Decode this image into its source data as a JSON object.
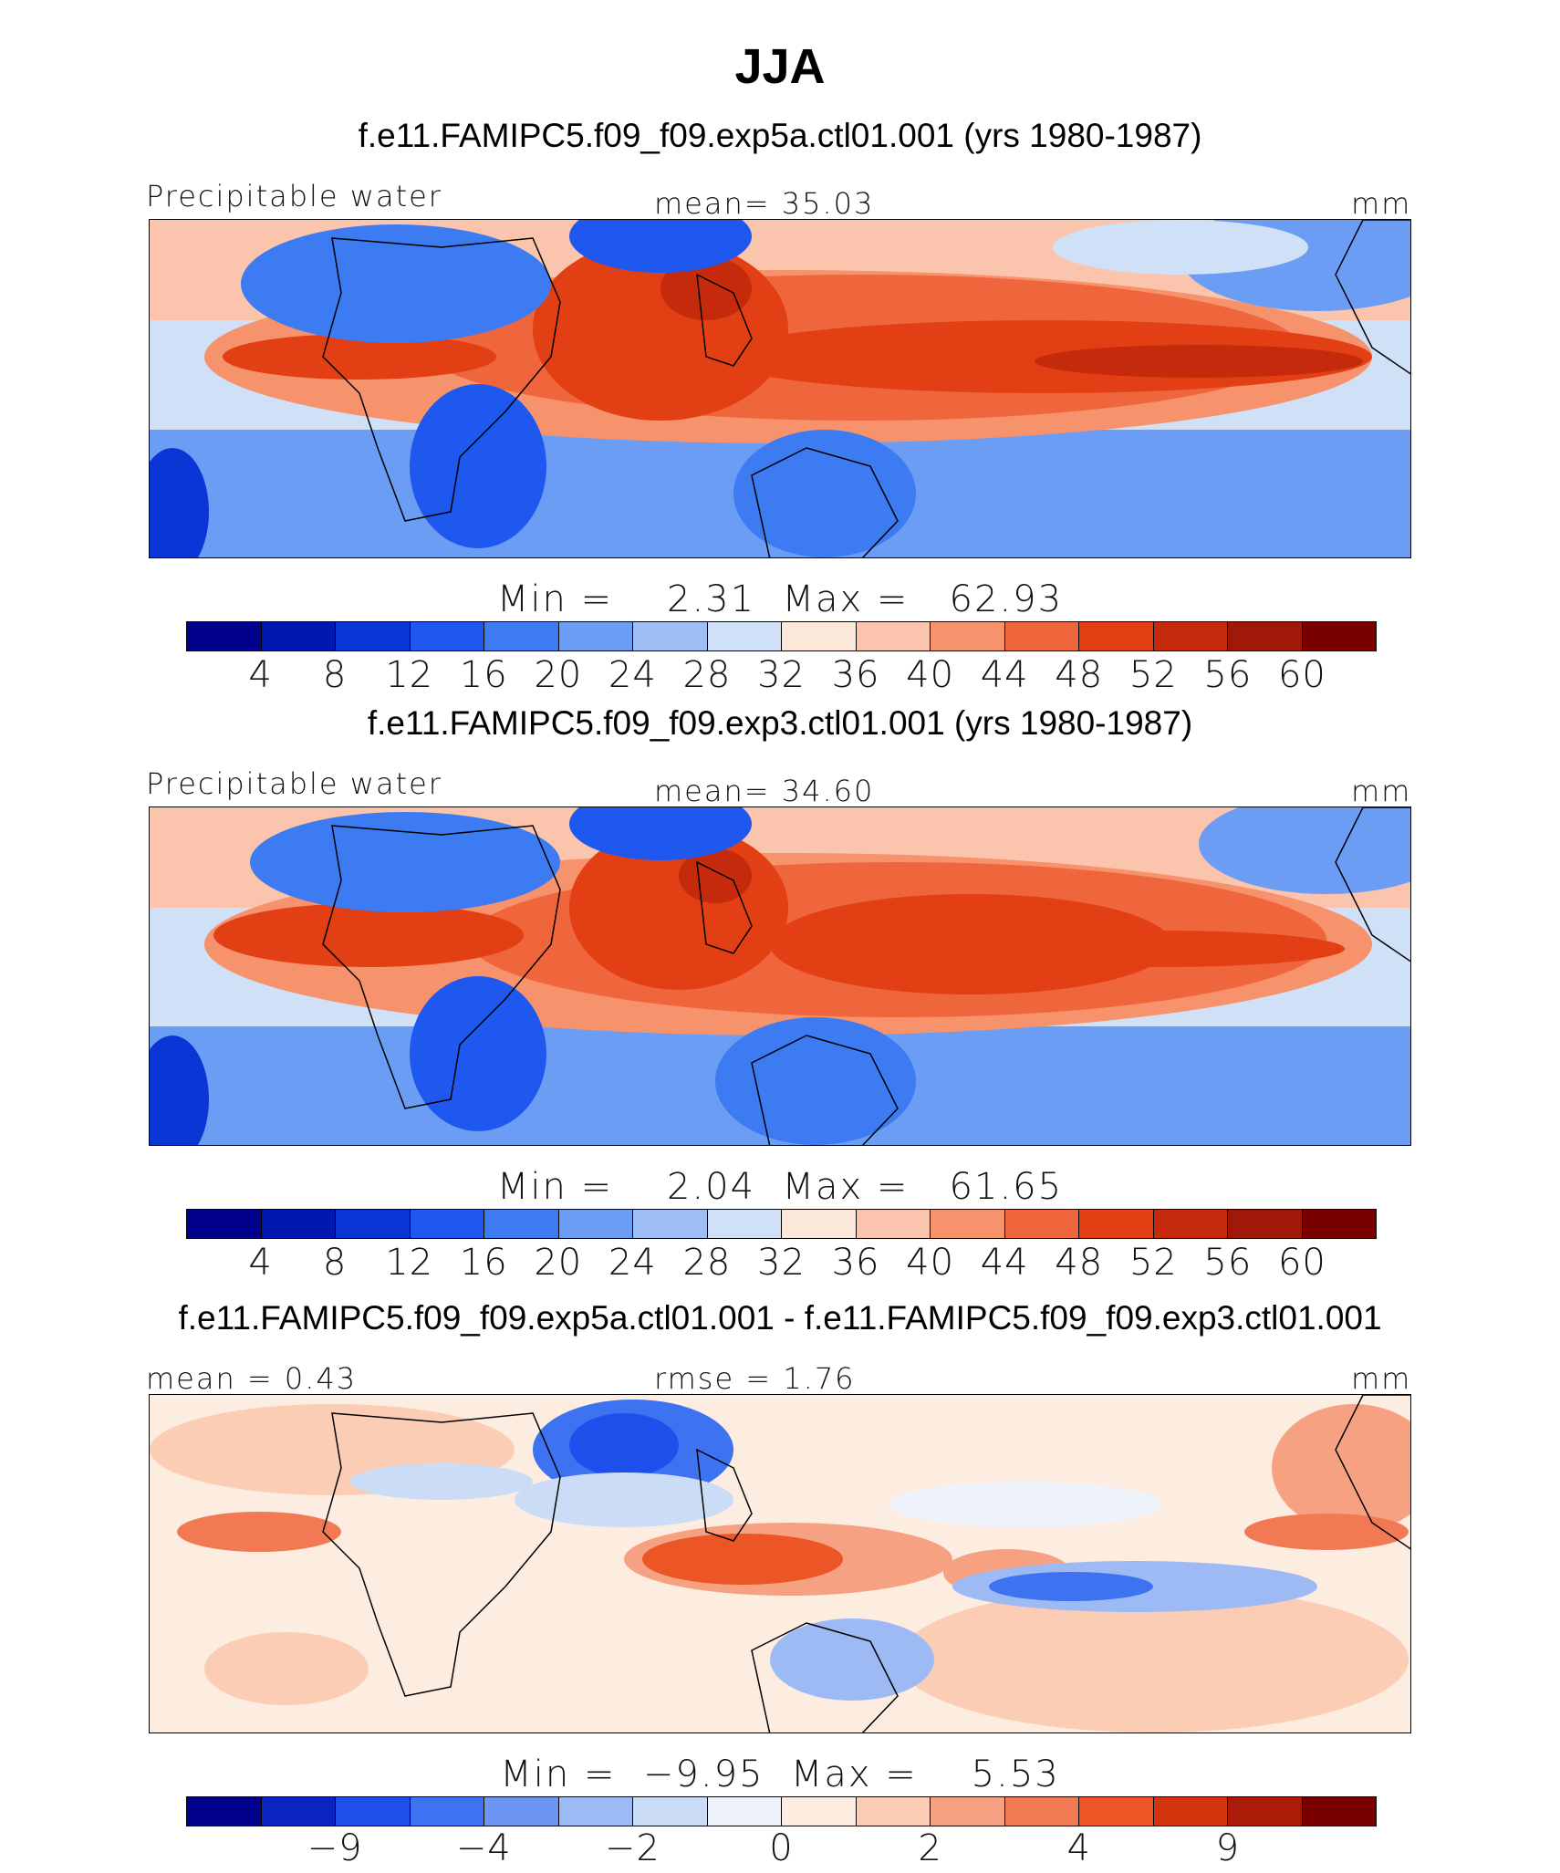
{
  "title": "JJA",
  "colors": {
    "abs_scale": [
      "#00008b",
      "#0018b0",
      "#0a36d6",
      "#1f58ef",
      "#3d7bf2",
      "#6b9df4",
      "#9ebff5",
      "#cfe0f7",
      "#fde9dc",
      "#fbc5ad",
      "#f6926c",
      "#f0663c",
      "#e33f14",
      "#c42a0b",
      "#a0180a",
      "#7a0000"
    ],
    "diff_scale": [
      "#00008b",
      "#0a25c0",
      "#1f4fea",
      "#3d73f0",
      "#6c96f2",
      "#9dbaf5",
      "#cbdcf7",
      "#eef3fb",
      "#fdece0",
      "#fbcdb5",
      "#f6a282",
      "#f17a55",
      "#ec5525",
      "#d5350c",
      "#aa1c08",
      "#7a0000"
    ]
  },
  "panels": [
    {
      "case_title": "f.e11.FAMIPC5.f09_f09.exp5a.ctl01.001 (yrs 1980-1987)",
      "left_label": "Precipitable water",
      "center_label": "mean=  35.03",
      "right_label": "mm",
      "minmax_text": "Min =    2.31  Max =   62.93",
      "scale": "abs",
      "tick_labels": [
        "4",
        "8",
        "12",
        "16",
        "20",
        "24",
        "28",
        "32",
        "36",
        "40",
        "44",
        "48",
        "52",
        "56",
        "60"
      ]
    },
    {
      "case_title": "f.e11.FAMIPC5.f09_f09.exp3.ctl01.001 (yrs 1980-1987)",
      "left_label": "Precipitable water",
      "center_label": "mean=  34.60",
      "right_label": "mm",
      "minmax_text": "Min =    2.04  Max =   61.65",
      "scale": "abs",
      "tick_labels": [
        "4",
        "8",
        "12",
        "16",
        "20",
        "24",
        "28",
        "32",
        "36",
        "40",
        "44",
        "48",
        "52",
        "56",
        "60"
      ]
    },
    {
      "case_title": "f.e11.FAMIPC5.f09_f09.exp5a.ctl01.001 - f.e11.FAMIPC5.f09_f09.exp3.ctl01.001",
      "left_label": "mean =   0.43",
      "center_label": "rmse =   1.76",
      "right_label": "mm",
      "minmax_text": "Min =  −9.95  Max =    5.53",
      "scale": "diff",
      "tick_labels": [
        "−9",
        "−4",
        "−2",
        "0",
        "2",
        "4",
        "9"
      ]
    }
  ],
  "chart_data": [
    {
      "type": "heatmap",
      "title": "f.e11.FAMIPC5.f09_f09.exp5a.ctl01.001 (yrs 1980-1987)",
      "variable": "Precipitable water",
      "units": "mm",
      "mean": 35.03,
      "min": 2.31,
      "max": 62.93,
      "levels": [
        4,
        8,
        12,
        16,
        20,
        24,
        28,
        32,
        36,
        40,
        44,
        48,
        52,
        56,
        60
      ]
    },
    {
      "type": "heatmap",
      "title": "f.e11.FAMIPC5.f09_f09.exp3.ctl01.001 (yrs 1980-1987)",
      "variable": "Precipitable water",
      "units": "mm",
      "mean": 34.6,
      "min": 2.04,
      "max": 61.65,
      "levels": [
        4,
        8,
        12,
        16,
        20,
        24,
        28,
        32,
        36,
        40,
        44,
        48,
        52,
        56,
        60
      ]
    },
    {
      "type": "heatmap",
      "title": "f.e11.FAMIPC5.f09_f09.exp5a.ctl01.001 - f.e11.FAMIPC5.f09_f09.exp3.ctl01.001",
      "units": "mm",
      "mean": 0.43,
      "rmse": 1.76,
      "min": -9.95,
      "max": 5.53,
      "levels": [
        -9,
        -4,
        -2,
        0,
        2,
        4,
        9
      ]
    }
  ]
}
